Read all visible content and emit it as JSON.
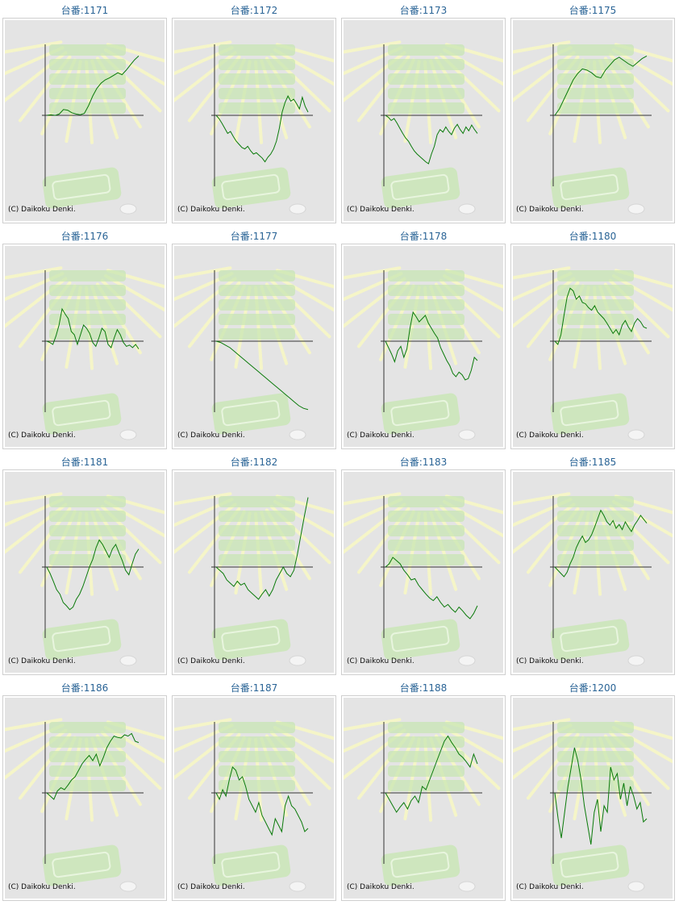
{
  "title_prefix": "台番:",
  "copyright": "(C) Daikoku Denki.",
  "colors": {
    "line": "#0a7a0a",
    "axis": "#333333",
    "bg": "#e4e4e4",
    "deco": "#c8e6b4",
    "ray": "#f5f5c8"
  },
  "chart_data": [
    {
      "type": "line",
      "title": "台番:1171",
      "series": [
        {
          "values": [
            0,
            1,
            0,
            2,
            9,
            8,
            4,
            2,
            1,
            3,
            15,
            30,
            42,
            50,
            55,
            58,
            62,
            66,
            63,
            70,
            78,
            86,
            92
          ]
        }
      ]
    },
    {
      "type": "line",
      "title": "台番:1172",
      "series": [
        {
          "values": [
            0,
            -5,
            -12,
            -20,
            -28,
            -25,
            -33,
            -40,
            -45,
            -50,
            -52,
            -48,
            -55,
            -60,
            -58,
            -62,
            -66,
            -72,
            -65,
            -60,
            -52,
            -40,
            -20,
            5,
            20,
            30,
            22,
            25,
            18,
            10,
            28,
            14,
            5
          ]
        }
      ]
    },
    {
      "type": "line",
      "title": "台番:1173",
      "series": [
        {
          "values": [
            0,
            -3,
            -8,
            -5,
            -12,
            -20,
            -28,
            -35,
            -40,
            -48,
            -55,
            -60,
            -64,
            -68,
            -72,
            -75,
            -60,
            -48,
            -30,
            -22,
            -26,
            -18,
            -25,
            -30,
            -20,
            -14,
            -22,
            -28,
            -18,
            -24,
            -15,
            -22,
            -28
          ]
        }
      ]
    },
    {
      "type": "line",
      "title": "台番:1175",
      "series": [
        {
          "values": [
            0,
            10,
            25,
            40,
            55,
            65,
            72,
            70,
            66,
            60,
            58,
            70,
            78,
            86,
            90,
            85,
            80,
            76,
            82,
            88,
            92
          ]
        }
      ]
    },
    {
      "type": "line",
      "title": "台番:1176",
      "series": [
        {
          "values": [
            0,
            -2,
            -5,
            8,
            25,
            50,
            42,
            35,
            15,
            10,
            -5,
            10,
            25,
            20,
            12,
            -2,
            -8,
            5,
            20,
            15,
            -5,
            -10,
            5,
            18,
            10,
            -2,
            -8,
            -6,
            -10,
            -5,
            -12
          ]
        }
      ]
    },
    {
      "type": "line",
      "title": "台番:1177",
      "series": [
        {
          "values": [
            0,
            -2,
            -6,
            -10,
            -16,
            -22,
            -28,
            -34,
            -40,
            -46,
            -52,
            -58,
            -64,
            -70,
            -76,
            -82,
            -88,
            -94,
            -100,
            -104,
            -106
          ]
        }
      ]
    },
    {
      "type": "line",
      "title": "台番:1178",
      "series": [
        {
          "values": [
            0,
            -10,
            -20,
            -32,
            -15,
            -8,
            -25,
            -12,
            20,
            45,
            38,
            30,
            35,
            40,
            28,
            20,
            12,
            5,
            -10,
            -20,
            -30,
            -38,
            -50,
            -55,
            -48,
            -52,
            -60,
            -58,
            -45,
            -25,
            -30
          ]
        }
      ]
    },
    {
      "type": "line",
      "title": "台番:1180",
      "series": [
        {
          "values": [
            0,
            -5,
            10,
            40,
            68,
            82,
            78,
            65,
            70,
            60,
            58,
            52,
            48,
            55,
            45,
            40,
            35,
            28,
            20,
            12,
            18,
            10,
            25,
            32,
            22,
            15,
            28,
            35,
            30,
            22,
            20
          ]
        }
      ]
    },
    {
      "type": "line",
      "title": "台番:1181",
      "series": [
        {
          "values": [
            0,
            -10,
            -22,
            -35,
            -42,
            -55,
            -60,
            -66,
            -62,
            -50,
            -42,
            -30,
            -15,
            0,
            12,
            30,
            42,
            35,
            25,
            15,
            28,
            35,
            22,
            10,
            -5,
            -12,
            5,
            20,
            28
          ]
        }
      ]
    },
    {
      "type": "line",
      "title": "台番:1182",
      "series": [
        {
          "values": [
            0,
            -5,
            -10,
            -20,
            -25,
            -30,
            -22,
            -28,
            -25,
            -35,
            -40,
            -45,
            -50,
            -42,
            -35,
            -45,
            -35,
            -20,
            -10,
            0,
            -10,
            -15,
            -5,
            20,
            50,
            80,
            108
          ]
        }
      ]
    },
    {
      "type": "line",
      "title": "台番:1183",
      "series": [
        {
          "values": [
            0,
            5,
            15,
            10,
            5,
            -5,
            -12,
            -20,
            -18,
            -28,
            -35,
            -42,
            -48,
            -52,
            -46,
            -55,
            -62,
            -58,
            -65,
            -70,
            -62,
            -68,
            -75,
            -80,
            -72,
            -60
          ]
        }
      ]
    },
    {
      "type": "line",
      "title": "台番:1185",
      "series": [
        {
          "values": [
            0,
            -5,
            -10,
            -15,
            -8,
            5,
            15,
            30,
            40,
            48,
            38,
            42,
            50,
            62,
            75,
            88,
            80,
            70,
            65,
            72,
            60,
            66,
            58,
            70,
            62,
            55,
            65,
            72,
            80,
            74,
            68
          ]
        }
      ]
    },
    {
      "type": "line",
      "title": "台番:1186",
      "series": [
        {
          "values": [
            0,
            -5,
            -10,
            3,
            8,
            5,
            12,
            20,
            25,
            35,
            45,
            52,
            58,
            50,
            60,
            42,
            55,
            70,
            80,
            88,
            86,
            85,
            90,
            88,
            92,
            80,
            78
          ]
        }
      ]
    },
    {
      "type": "line",
      "title": "台番:1187",
      "series": [
        {
          "values": [
            0,
            -10,
            5,
            -5,
            20,
            40,
            35,
            20,
            25,
            10,
            -10,
            -20,
            -30,
            -15,
            -35,
            -45,
            -55,
            -65,
            -40,
            -50,
            -60,
            -20,
            -5,
            -20,
            -25,
            -35,
            -45,
            -60,
            -55
          ]
        }
      ]
    },
    {
      "type": "line",
      "title": "台番:1188",
      "series": [
        {
          "values": [
            0,
            -10,
            -20,
            -30,
            -22,
            -15,
            -25,
            -12,
            -5,
            -15,
            10,
            5,
            20,
            35,
            50,
            65,
            80,
            88,
            78,
            70,
            60,
            55,
            48,
            40,
            60,
            45
          ]
        }
      ]
    },
    {
      "type": "line",
      "title": "台番:1200",
      "series": [
        {
          "values": [
            0,
            -40,
            -70,
            -30,
            10,
            40,
            70,
            50,
            20,
            -20,
            -50,
            -80,
            -30,
            -10,
            -60,
            -20,
            -30,
            40,
            20,
            30,
            -10,
            15,
            -20,
            10,
            -5,
            -25,
            -15,
            -45,
            -40
          ]
        }
      ]
    }
  ]
}
